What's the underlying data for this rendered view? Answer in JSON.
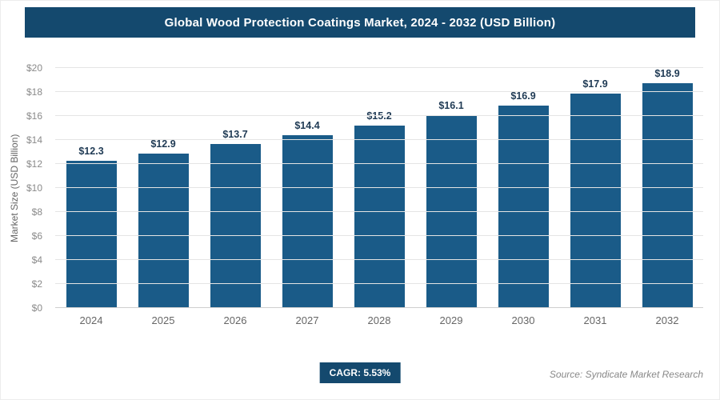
{
  "title": "Global Wood Protection Coatings Market, 2024 - 2032 (USD Billion)",
  "chart_data": {
    "type": "bar",
    "title": "Global Wood Protection Coatings Market, 2024 - 2032 (USD Billion)",
    "categories": [
      "2024",
      "2025",
      "2026",
      "2027",
      "2028",
      "2029",
      "2030",
      "2031",
      "2032"
    ],
    "values": [
      12.3,
      12.9,
      13.7,
      14.4,
      15.2,
      16.1,
      16.9,
      17.9,
      18.9
    ],
    "value_labels": [
      "$12.3",
      "$12.9",
      "$13.7",
      "$14.4",
      "$15.2",
      "$16.1",
      "$16.9",
      "$17.9",
      "$18.9"
    ],
    "xlabel": "",
    "ylabel": "Market Size (USD Billion)",
    "ylim": [
      0,
      20
    ],
    "ytick_step": 2,
    "ytick_prefix": "$",
    "grid": "horizontal",
    "legend": "none",
    "bar_color": "#1a5b88"
  },
  "footer": {
    "cagr": "CAGR: 5.53%",
    "source": "Source: Syndicate Market Research"
  },
  "colors": {
    "title_bar_bg": "#14496e",
    "badge_bg": "#14496e",
    "bar": "#1a5b88",
    "gridline": "#e4e4e4",
    "tick_text": "#8a8a8a",
    "value_text": "#1f3a54"
  }
}
